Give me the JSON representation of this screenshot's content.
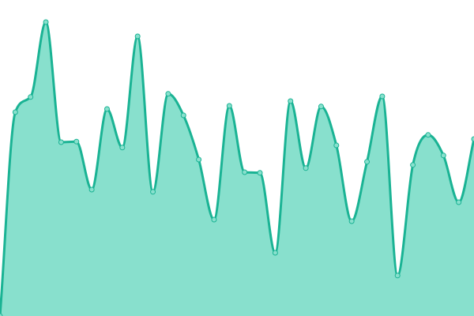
{
  "chart_data": {
    "type": "area",
    "title": "",
    "xlabel": "",
    "ylabel": "",
    "x": [
      0,
      1,
      2,
      3,
      4,
      5,
      6,
      7,
      8,
      9,
      10,
      11,
      12,
      13,
      14,
      15,
      16,
      17,
      18,
      19,
      20,
      21,
      22,
      23,
      24,
      25,
      26,
      27,
      28,
      29,
      30,
      31
    ],
    "values": [
      0,
      64.5,
      69.3,
      93.0,
      55.0,
      55.2,
      40.0,
      65.5,
      53.3,
      88.5,
      39.3,
      70.3,
      63.5,
      49.5,
      30.5,
      66.5,
      45.5,
      45.3,
      20.0,
      68.0,
      46.8,
      66.3,
      54.0,
      30.0,
      48.8,
      69.5,
      12.8,
      47.8,
      57.3,
      50.8,
      36.0,
      56.0
    ],
    "ylim": [
      0,
      100
    ],
    "grid": false,
    "show_axes": false,
    "colors": {
      "line": "#1ab394",
      "fill": "#88e0cd",
      "point_fill": "#88e0cd",
      "point_stroke": "#1ab394"
    }
  }
}
